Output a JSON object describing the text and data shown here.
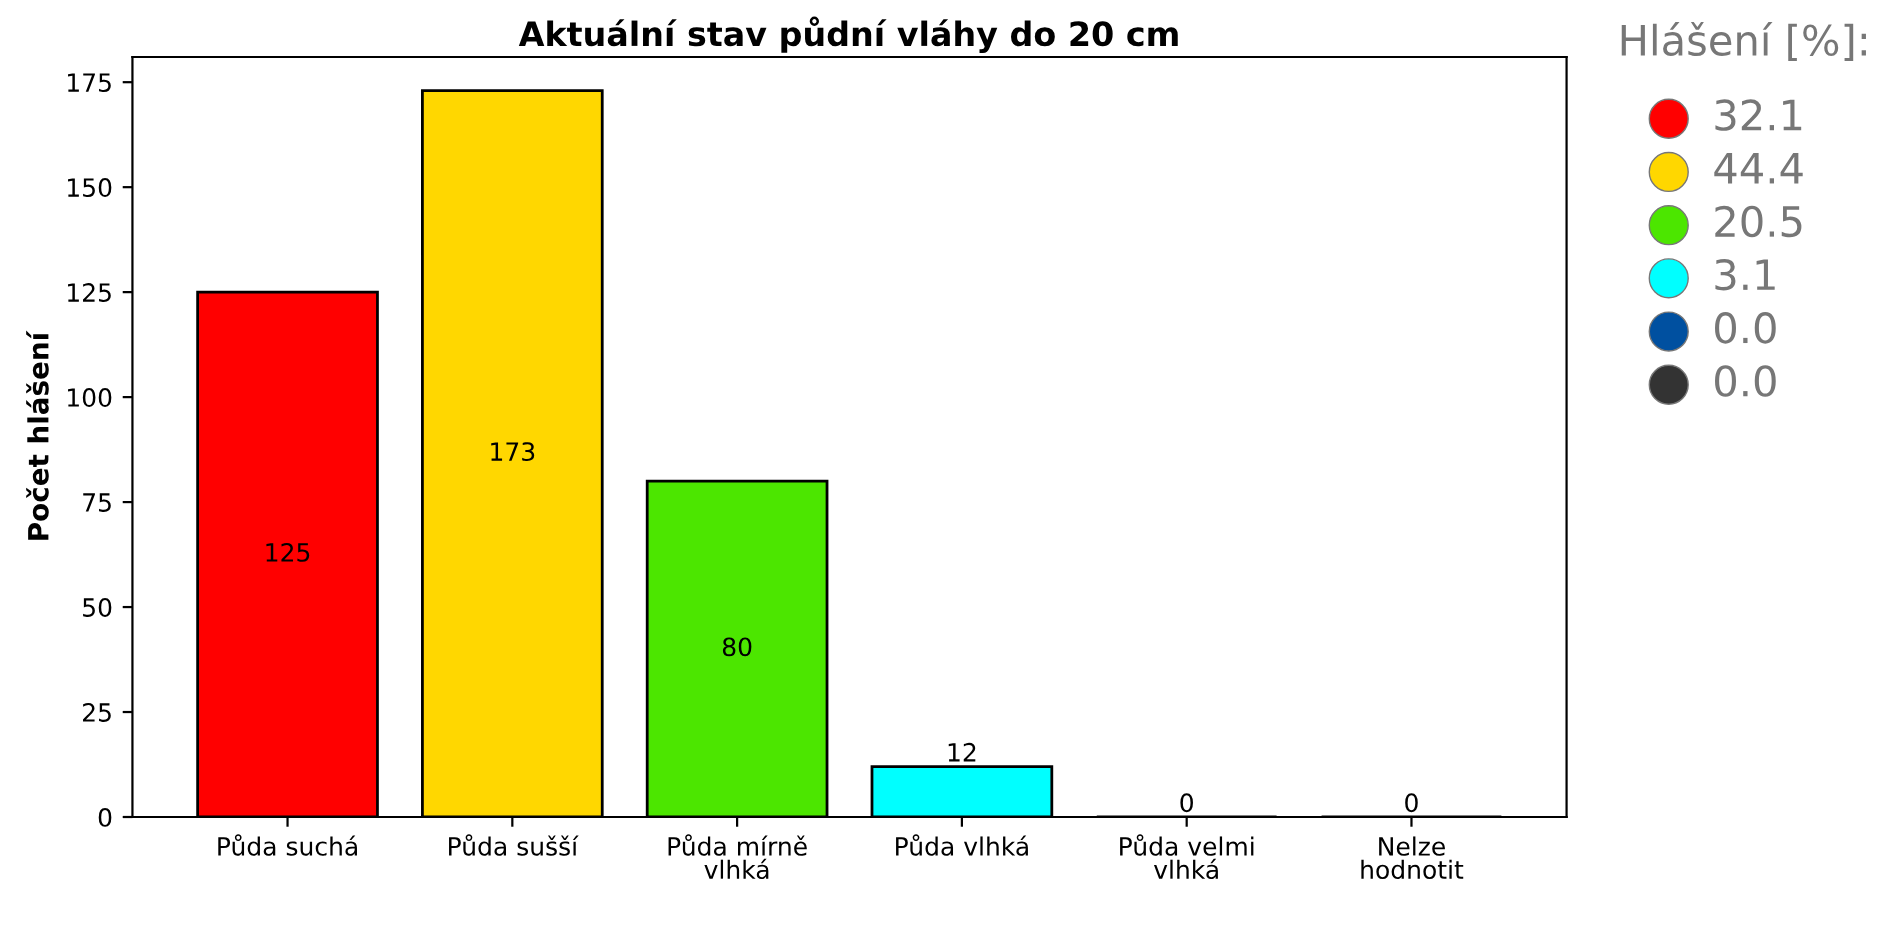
{
  "chart_data": {
    "type": "bar",
    "title": "Aktuální stav půdní vláhy do 20 cm",
    "ylabel": "Počet hlášení",
    "categories": [
      "Půda suchá",
      "Půda sušší",
      "Půda mírně\nvlhká",
      "Půda vlhká",
      "Půda velmi\nvlhká",
      "Nelze\nhodnotit"
    ],
    "values": [
      125,
      173,
      80,
      12,
      0,
      0
    ],
    "colors": [
      "#ff0000",
      "#ffd700",
      "#4ce600",
      "#00ffff",
      "#0050a0",
      "#333333"
    ],
    "ylim": [
      0,
      181
    ],
    "yticks": [
      0,
      25,
      50,
      75,
      100,
      125,
      150,
      175
    ],
    "data_labels": true,
    "grid": false,
    "legend_title": "Hlášení [%]:",
    "annotations": [
      "32.1",
      "44.4",
      "20.5",
      "3.1",
      "0.0",
      "0.0"
    ]
  }
}
